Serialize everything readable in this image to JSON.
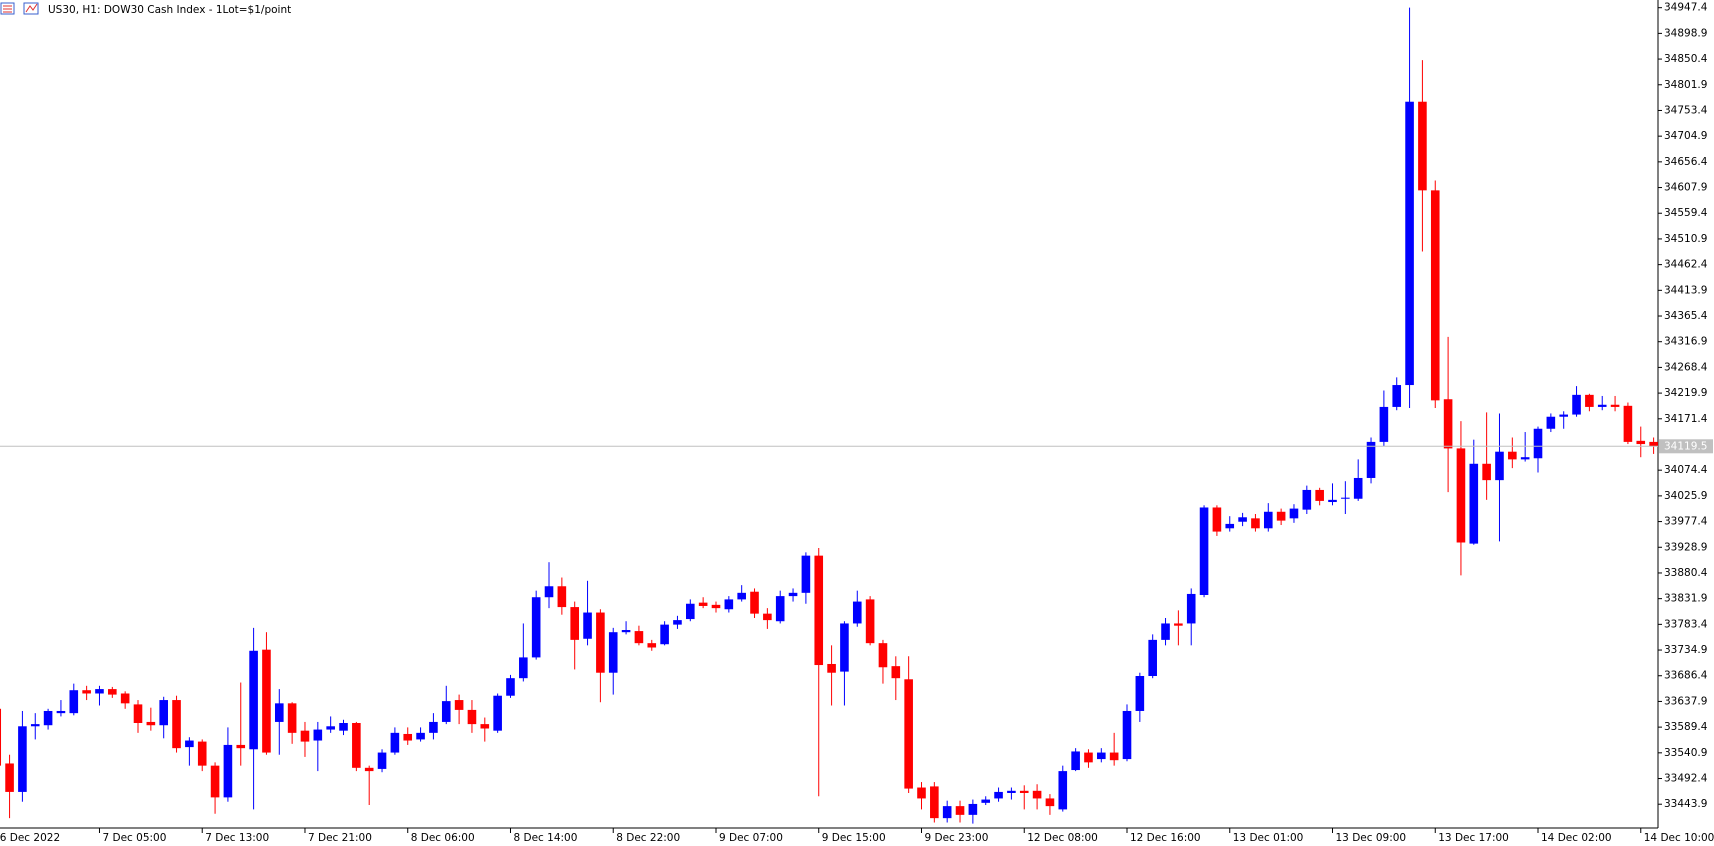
{
  "chart_data": {
    "type": "candlestick",
    "title": "US30, H1:  DOW30 Cash Index - 1Lot=$1/point",
    "up_color": "#0000ff",
    "down_color": "#ff0000",
    "ylim": [
      33399.0,
      34961.9
    ],
    "yticks": [
      34947.4,
      34898.9,
      34850.4,
      34801.9,
      34753.4,
      34704.9,
      34656.4,
      34607.9,
      34559.4,
      34510.9,
      34462.4,
      34413.9,
      34365.4,
      34316.9,
      34268.4,
      34219.9,
      34171.4,
      34074.4,
      34025.9,
      33977.4,
      33928.9,
      33880.4,
      33831.9,
      33783.4,
      33734.9,
      33686.4,
      33637.9,
      33589.4,
      33540.9,
      33492.4,
      33443.9
    ],
    "current_price": 34119.5,
    "categories": [
      "6 Dec 2022",
      null,
      null,
      null,
      null,
      null,
      null,
      null,
      "7 Dec 05:00",
      null,
      null,
      null,
      null,
      null,
      null,
      null,
      "7 Dec 13:00",
      null,
      null,
      null,
      null,
      null,
      null,
      null,
      "7 Dec 21:00",
      null,
      null,
      null,
      null,
      null,
      null,
      null,
      "8 Dec 06:00",
      null,
      null,
      null,
      null,
      null,
      null,
      null,
      "8 Dec 14:00",
      null,
      null,
      null,
      null,
      null,
      null,
      null,
      "8 Dec 22:00",
      null,
      null,
      null,
      null,
      null,
      null,
      null,
      "9 Dec 07:00",
      null,
      null,
      null,
      null,
      null,
      null,
      null,
      "9 Dec 15:00",
      null,
      null,
      null,
      null,
      null,
      null,
      null,
      "9 Dec 23:00",
      null,
      null,
      null,
      null,
      null,
      null,
      null,
      "12 Dec 08:00",
      null,
      null,
      null,
      null,
      null,
      null,
      null,
      "12 Dec 16:00",
      null,
      null,
      null,
      null,
      null,
      null,
      null,
      "13 Dec 01:00",
      null,
      null,
      null,
      null,
      null,
      null,
      null,
      "13 Dec 09:00",
      null,
      null,
      null,
      null,
      null,
      null,
      null,
      "13 Dec 17:00",
      null,
      null,
      null,
      null,
      null,
      null,
      null,
      "14 Dec 02:00",
      null,
      null,
      null,
      null,
      null,
      null,
      null,
      "14 Dec 10:00",
      null
    ],
    "ohlc": [
      [
        33624.0,
        33640.5,
        33506.4,
        33516.7
      ],
      [
        33520.8,
        33537.3,
        33417.6,
        33467.1
      ],
      [
        33467.1,
        33619.9,
        33448.6,
        33591.0
      ],
      [
        33591.0,
        33615.8,
        33566.2,
        33595.1
      ],
      [
        33593.0,
        33624.0,
        33584.8,
        33619.9
      ],
      [
        33615.8,
        33640.5,
        33609.6,
        33619.9
      ],
      [
        33615.8,
        33671.5,
        33611.7,
        33659.1
      ],
      [
        33659.1,
        33667.4,
        33640.5,
        33652.9
      ],
      [
        33652.9,
        33667.4,
        33630.2,
        33661.2
      ],
      [
        33661.2,
        33665.3,
        33644.6,
        33650.8
      ],
      [
        33652.9,
        33657.0,
        33624.0,
        33634.3
      ],
      [
        33632.3,
        33640.5,
        33578.6,
        33597.2
      ],
      [
        33599.2,
        33626.1,
        33582.7,
        33593.0
      ],
      [
        33593.0,
        33646.7,
        33568.3,
        33640.5
      ],
      [
        33640.5,
        33648.7,
        33541.4,
        33549.7
      ],
      [
        33551.7,
        33570.3,
        33516.7,
        33564.1
      ],
      [
        33562.1,
        33566.2,
        33506.4,
        33516.7
      ],
      [
        33516.7,
        33522.9,
        33425.9,
        33456.8
      ],
      [
        33456.8,
        33588.9,
        33448.6,
        33555.8
      ],
      [
        33555.8,
        33673.6,
        33516.7,
        33549.7
      ],
      [
        33547.6,
        33776.8,
        33434.1,
        33733.5
      ],
      [
        33735.6,
        33768.6,
        33537.3,
        33541.4
      ],
      [
        33599.2,
        33661.2,
        33537.3,
        33634.3
      ],
      [
        33634.3,
        33636.4,
        33557.9,
        33578.6
      ],
      [
        33582.7,
        33599.2,
        33533.2,
        33562.1
      ],
      [
        33564.1,
        33599.2,
        33506.4,
        33584.8
      ],
      [
        33584.8,
        33609.6,
        33578.6,
        33591.0
      ],
      [
        33582.7,
        33603.3,
        33574.4,
        33597.2
      ],
      [
        33597.2,
        33599.2,
        33506.4,
        33512.6
      ],
      [
        33512.6,
        33516.7,
        33442.4,
        33506.4
      ],
      [
        33510.5,
        33547.6,
        33504.3,
        33541.4
      ],
      [
        33541.4,
        33588.9,
        33537.3,
        33578.6
      ],
      [
        33576.5,
        33588.9,
        33555.8,
        33564.1
      ],
      [
        33566.2,
        33588.9,
        33562.1,
        33578.6
      ],
      [
        33578.6,
        33615.8,
        33566.2,
        33599.2
      ],
      [
        33599.2,
        33667.4,
        33595.1,
        33638.5
      ],
      [
        33640.5,
        33650.8,
        33595.1,
        33621.9
      ],
      [
        33621.9,
        33640.5,
        33578.6,
        33595.1
      ],
      [
        33595.1,
        33607.5,
        33562.1,
        33586.8
      ],
      [
        33582.7,
        33652.9,
        33578.6,
        33648.7
      ],
      [
        33648.7,
        33688.0,
        33644.6,
        33681.8
      ],
      [
        33681.8,
        33785.1,
        33675.6,
        33721.0
      ],
      [
        33721.0,
        33847.0,
        33716.9,
        33834.6
      ],
      [
        33834.6,
        33900.7,
        33814.0,
        33855.3
      ],
      [
        33855.3,
        33871.8,
        33801.6,
        33816.0
      ],
      [
        33816.0,
        33826.4,
        33698.3,
        33754.1
      ],
      [
        33756.2,
        33865.6,
        33743.8,
        33805.7
      ],
      [
        33805.7,
        33811.9,
        33636.4,
        33692.1
      ],
      [
        33692.1,
        33776.8,
        33650.8,
        33768.6
      ],
      [
        33768.6,
        33789.3,
        33764.5,
        33772.7
      ],
      [
        33770.7,
        33780.9,
        33743.8,
        33747.9
      ],
      [
        33747.9,
        33754.1,
        33733.5,
        33739.7
      ],
      [
        33745.9,
        33789.3,
        33743.8,
        33782.9
      ],
      [
        33782.9,
        33799.5,
        33774.8,
        33791.4
      ],
      [
        33793.4,
        33830.5,
        33789.3,
        33822.3
      ],
      [
        33824.4,
        33834.6,
        33814.0,
        33818.1
      ],
      [
        33820.2,
        33826.4,
        33805.7,
        33814.0
      ],
      [
        33811.9,
        33836.7,
        33805.7,
        33830.5
      ],
      [
        33830.5,
        33857.4,
        33826.4,
        33842.9
      ],
      [
        33845.0,
        33851.2,
        33795.4,
        33803.6
      ],
      [
        33803.6,
        33814.0,
        33774.8,
        33791.4
      ],
      [
        33789.3,
        33847.0,
        33785.1,
        33836.7
      ],
      [
        33836.7,
        33851.2,
        33826.4,
        33842.9
      ],
      [
        33842.9,
        33919.3,
        33822.3,
        33913.1
      ],
      [
        33913.1,
        33927.5,
        33458.9,
        33706.6
      ],
      [
        33708.6,
        33743.8,
        33630.2,
        33692.1
      ],
      [
        33694.2,
        33789.3,
        33630.2,
        33785.1
      ],
      [
        33785.1,
        33847.0,
        33778.9,
        33826.4
      ],
      [
        33830.5,
        33836.7,
        33743.8,
        33747.9
      ],
      [
        33747.9,
        33754.1,
        33671.5,
        33702.4
      ],
      [
        33704.5,
        33723.1,
        33640.5,
        33681.8
      ],
      [
        33679.7,
        33723.1,
        33465.1,
        33473.4
      ],
      [
        33475.4,
        33485.7,
        33434.1,
        33454.8
      ],
      [
        33477.5,
        33485.7,
        33409.4,
        33417.6
      ],
      [
        33417.6,
        33450.6,
        33409.4,
        33440.3
      ],
      [
        33440.3,
        33450.6,
        33409.4,
        33423.8
      ],
      [
        33423.8,
        33452.7,
        33407.3,
        33444.4
      ],
      [
        33446.5,
        33458.9,
        33442.4,
        33452.7
      ],
      [
        33454.8,
        33475.4,
        33448.6,
        33467.1
      ],
      [
        33465.1,
        33475.4,
        33452.7,
        33469.2
      ],
      [
        33469.2,
        33479.6,
        33434.1,
        33465.1
      ],
      [
        33469.2,
        33481.6,
        33434.1,
        33454.8
      ],
      [
        33454.8,
        33463.0,
        33423.8,
        33440.3
      ],
      [
        33434.1,
        33516.7,
        33430.0,
        33506.4
      ],
      [
        33508.4,
        33549.7,
        33506.4,
        33543.5
      ],
      [
        33541.4,
        33547.6,
        33512.6,
        33522.9
      ],
      [
        33529.1,
        33549.7,
        33522.9,
        33541.4
      ],
      [
        33541.4,
        33578.6,
        33516.7,
        33527.0
      ],
      [
        33529.1,
        33632.3,
        33525.0,
        33619.9
      ],
      [
        33619.9,
        33692.1,
        33599.2,
        33685.9
      ],
      [
        33685.9,
        33764.5,
        33681.8,
        33754.1
      ],
      [
        33754.1,
        33795.4,
        33743.8,
        33785.1
      ],
      [
        33785.1,
        33809.8,
        33743.8,
        33780.9
      ],
      [
        33785.1,
        33851.2,
        33743.8,
        33840.8
      ],
      [
        33838.8,
        34008.1,
        33834.6,
        34004.0
      ],
      [
        34004.0,
        34008.1,
        33950.3,
        33958.5
      ],
      [
        33964.7,
        33987.6,
        33958.5,
        33973.0
      ],
      [
        33977.1,
        33993.8,
        33968.8,
        33985.5
      ],
      [
        33983.5,
        33991.7,
        33958.5,
        33964.7
      ],
      [
        33964.7,
        34012.2,
        33958.5,
        33995.9
      ],
      [
        33995.9,
        34001.9,
        33970.9,
        33979.2
      ],
      [
        33983.5,
        34010.2,
        33975.0,
        34001.9
      ],
      [
        33999.9,
        34045.3,
        33991.7,
        34037.1
      ],
      [
        34037.1,
        34041.2,
        34008.1,
        34016.4
      ],
      [
        34014.3,
        34049.5,
        34008.1,
        34018.4
      ],
      [
        34020.5,
        34053.6,
        33991.7,
        34022.5
      ],
      [
        34020.5,
        34094.8,
        34016.4,
        34059.7
      ],
      [
        34059.7,
        34136.1,
        34049.5,
        34127.8
      ],
      [
        34127.8,
        34224.8,
        34119.6,
        34193.8
      ],
      [
        34193.8,
        34249.6,
        34187.6,
        34235.1
      ],
      [
        34235.1,
        34947.4,
        34191.8,
        34769.9
      ],
      [
        34769.9,
        34848.3,
        34487.1,
        34602.6
      ],
      [
        34602.6,
        34621.2,
        34191.8,
        34206.2
      ],
      [
        34208.3,
        34326.0,
        34032.9,
        34115.5
      ],
      [
        34115.5,
        34167.0,
        33875.9,
        33937.9
      ],
      [
        33935.8,
        34132.0,
        33933.7,
        34086.5
      ],
      [
        34086.5,
        34183.5,
        34018.4,
        34055.6
      ],
      [
        34055.6,
        34181.5,
        33940.0,
        34109.3
      ],
      [
        34109.3,
        34136.1,
        34078.3,
        34094.8
      ],
      [
        34094.8,
        34146.4,
        34090.7,
        34098.9
      ],
      [
        34096.9,
        34156.7,
        34070.0,
        34152.6
      ],
      [
        34152.6,
        34181.5,
        34146.4,
        34175.3
      ],
      [
        34175.3,
        34185.6,
        34152.6,
        34179.4
      ],
      [
        34179.4,
        34233.1,
        34175.3,
        34216.6
      ],
      [
        34216.6,
        34218.6,
        34185.6,
        34193.8
      ],
      [
        34193.8,
        34214.5,
        34187.6,
        34197.9
      ],
      [
        34197.9,
        34214.5,
        34185.6,
        34193.8
      ],
      [
        34195.9,
        34202.1,
        34123.7,
        34127.8
      ],
      [
        34129.8,
        34156.7,
        34098.9,
        34123.7
      ],
      [
        34127.8,
        34136.1,
        34105.1,
        34119.5
      ]
    ]
  }
}
